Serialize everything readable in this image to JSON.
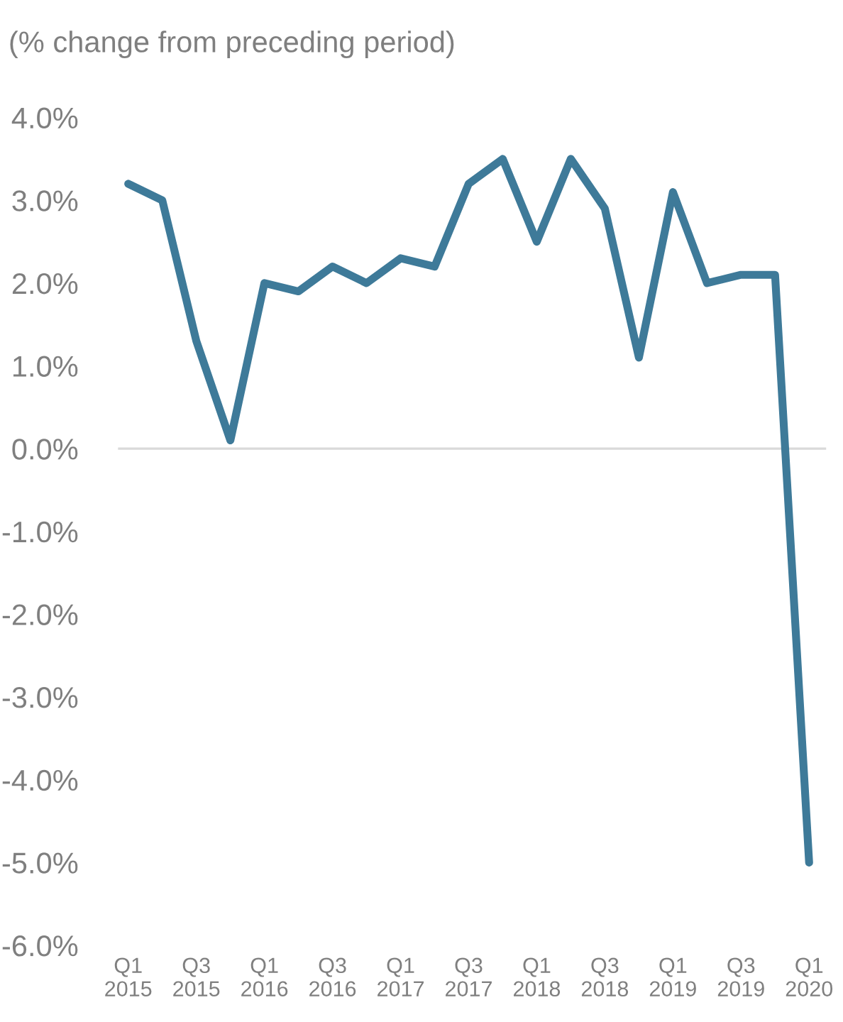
{
  "chart_data": {
    "type": "line",
    "title": "(% change from preceding period)",
    "categories": [
      "Q1\n2015",
      null,
      "Q3\n2015",
      null,
      "Q1\n2016",
      null,
      "Q3\n2016",
      null,
      "Q1\n2017",
      null,
      "Q3\n2017",
      null,
      "Q1\n2018",
      null,
      "Q3\n2018",
      null,
      "Q1\n2019",
      null,
      "Q3\n2019",
      null,
      "Q1\n2020"
    ],
    "series": [
      {
        "color": "#3e7a99",
        "values": [
          3.2,
          3.0,
          1.3,
          0.1,
          2.0,
          1.9,
          2.2,
          2.0,
          2.3,
          2.2,
          3.2,
          3.5,
          2.5,
          3.5,
          2.9,
          1.1,
          3.1,
          2.0,
          2.1,
          2.1,
          -5.0
        ]
      }
    ],
    "ylim": [
      -6,
      4
    ],
    "yticks": [
      {
        "value": -6,
        "label": "-6.0%"
      },
      {
        "value": -5,
        "label": "-5.0%"
      },
      {
        "value": -4,
        "label": "-4.0%"
      },
      {
        "value": -3,
        "label": "-3.0%"
      },
      {
        "value": -2,
        "label": "-2.0%"
      },
      {
        "value": -1,
        "label": "-1.0%"
      },
      {
        "value": 0,
        "label": "0.0%"
      },
      {
        "value": 1,
        "label": "1.0%"
      },
      {
        "value": 2,
        "label": "2.0%"
      },
      {
        "value": 3,
        "label": "3.0%"
      },
      {
        "value": 4,
        "label": "4.0%"
      }
    ],
    "ref_lines": [
      {
        "axis": "y",
        "value": 0,
        "color": "#d9d9d9"
      }
    ],
    "grid": false,
    "legend": false,
    "marker": "none",
    "line_style": "solid"
  }
}
